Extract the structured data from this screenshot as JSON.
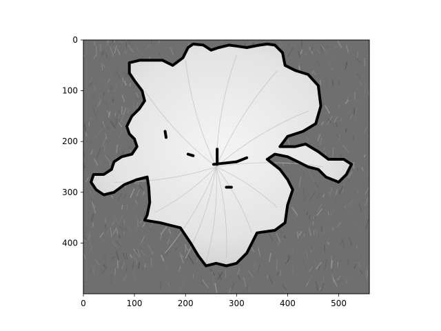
{
  "chart_data": {
    "type": "heatmap",
    "title": "",
    "xlabel": "",
    "ylabel": "",
    "x_range": [
      0,
      560
    ],
    "y_range": [
      0,
      500
    ],
    "x_ticks": [
      0,
      100,
      200,
      300,
      400,
      500
    ],
    "y_ticks": [
      0,
      100,
      200,
      300,
      400
    ],
    "y_inverted": true,
    "colormap": "gray",
    "grid": false,
    "legend": "none",
    "image_content": "grayscale photo of a white iris flower on grass with a thick black segmentation contour",
    "contour_color": "#000000",
    "contour_points": [
      [
        90,
        45
      ],
      [
        110,
        40
      ],
      [
        155,
        40
      ],
      [
        175,
        50
      ],
      [
        195,
        35
      ],
      [
        205,
        15
      ],
      [
        215,
        8
      ],
      [
        235,
        10
      ],
      [
        250,
        20
      ],
      [
        265,
        15
      ],
      [
        285,
        10
      ],
      [
        300,
        12
      ],
      [
        320,
        15
      ],
      [
        345,
        10
      ],
      [
        360,
        8
      ],
      [
        375,
        10
      ],
      [
        390,
        25
      ],
      [
        395,
        50
      ],
      [
        415,
        60
      ],
      [
        440,
        68
      ],
      [
        460,
        90
      ],
      [
        465,
        130
      ],
      [
        455,
        165
      ],
      [
        430,
        180
      ],
      [
        400,
        190
      ],
      [
        385,
        210
      ],
      [
        415,
        210
      ],
      [
        435,
        205
      ],
      [
        460,
        220
      ],
      [
        480,
        235
      ],
      [
        510,
        235
      ],
      [
        525,
        245
      ],
      [
        515,
        265
      ],
      [
        500,
        280
      ],
      [
        475,
        270
      ],
      [
        460,
        255
      ],
      [
        440,
        250
      ],
      [
        420,
        240
      ],
      [
        400,
        230
      ],
      [
        375,
        225
      ],
      [
        360,
        235
      ],
      [
        385,
        255
      ],
      [
        400,
        275
      ],
      [
        410,
        295
      ],
      [
        400,
        325
      ],
      [
        395,
        360
      ],
      [
        375,
        375
      ],
      [
        340,
        380
      ],
      [
        320,
        420
      ],
      [
        300,
        440
      ],
      [
        280,
        445
      ],
      [
        260,
        440
      ],
      [
        240,
        445
      ],
      [
        225,
        425
      ],
      [
        210,
        400
      ],
      [
        200,
        385
      ],
      [
        190,
        370
      ],
      [
        150,
        360
      ],
      [
        120,
        355
      ],
      [
        125,
        345
      ],
      [
        130,
        320
      ],
      [
        128,
        290
      ],
      [
        125,
        270
      ],
      [
        105,
        275
      ],
      [
        80,
        285
      ],
      [
        60,
        300
      ],
      [
        40,
        305
      ],
      [
        25,
        295
      ],
      [
        15,
        280
      ],
      [
        20,
        265
      ],
      [
        40,
        265
      ],
      [
        55,
        255
      ],
      [
        60,
        240
      ],
      [
        75,
        230
      ],
      [
        95,
        225
      ],
      [
        105,
        210
      ],
      [
        100,
        195
      ],
      [
        90,
        185
      ],
      [
        85,
        170
      ],
      [
        95,
        150
      ],
      [
        110,
        135
      ],
      [
        120,
        120
      ],
      [
        115,
        100
      ],
      [
        100,
        80
      ],
      [
        90,
        65
      ]
    ]
  }
}
